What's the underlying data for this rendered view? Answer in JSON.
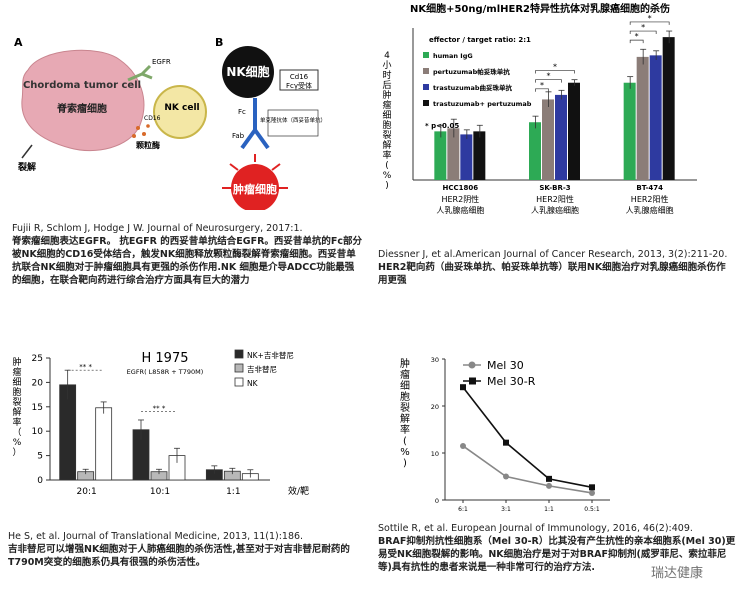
{
  "figure1": {
    "panel_a_letter": "A",
    "panel_b_letter": "B",
    "egfr_label": "EGFR",
    "tumor_label_en": "Chordoma tumor cell",
    "tumor_label_cn": "脊索瘤细胞",
    "nk_label": "NK cell",
    "cd16_label": "CD16",
    "granule_label": "颗粒酶",
    "lysis_label": "裂解",
    "nk_big": "NK细胞",
    "cd16_box": "Cd16",
    "fc_receptor": "Fcγ受体",
    "fc_label": "Fc",
    "fab_label": "Fab",
    "mab_label": "单克隆抗体（西妥昔单抗）",
    "tumor_big": "肿瘤细胞",
    "caption_ref": "Fujii R, Schlom J, Hodge J W.  Journal of Neurosurgery, 2017:1.",
    "caption_cn": "脊索瘤细胞表达EGFR。 抗EGFR 的西妥昔单抗结合EGFR。西妥昔单抗的Fc部分被NK细胞的CD16受体结合，触发NK细胞释放颗粒酶裂解脊索瘤细胞。西妥昔单抗联合NK细胞对于肿瘤细胞具有更强的杀伤作用.NK 细胞是介导ADCC功能最强的细胞，在联合靶向药进行综合治疗方面具有巨大的潜力"
  },
  "figure2": {
    "caption_ref": "Diessner J, et al.American Journal of Cancer Research, 2013, 3(2):211-20.",
    "caption_cn": "HER2靶向药（曲妥珠单抗、帕妥珠单抗等）联用NK细胞治疗对乳腺癌细胞杀伤作用更强",
    "sig_note": "* p<0.05",
    "group_sub": [
      "HER2阴性\n人乳腺癌细胞",
      "HER2阳性\n人乳腺癌细胞",
      "HER2阳性\n人乳腺癌细胞"
    ]
  },
  "figure3": {
    "caption_ref": "He S, et al. Journal of Translational Medicine, 2013, 11(1):186.",
    "caption_cn": "吉非替尼可以增强NK细胞对于人肺癌细胞的杀伤活性,甚至对于对吉非替尼耐药的T790M突变的细胞系仍具有很强的杀伤活性。",
    "plot_title": "H 1975",
    "plot_subtitle": "EGFR( L858R + T790M)",
    "sig_marks": "** *"
  },
  "figure4": {
    "caption_ref": "Sottile R,  et al.  European Journal of Immunology, 2016, 46(2):409.",
    "caption_cn": "BRAF抑制剂抗性细胞系（Mel 30-R）比其没有产生抗性的亲本细胞系(Mel 30)更易受NK细胞裂解的影响。NK细胞治疗是对于对BRAF抑制剂(威罗菲尼、索拉菲尼等)具有抗性的患者来说是一种非常可行的治疗方法."
  },
  "watermark": "瑞达健康",
  "chart_data": [
    {
      "type": "bar",
      "title": "NK细胞+50ng/mlHER2特异性抗体对乳腺癌细胞的杀伤",
      "ylabel": "4小时后肿瘤细胞裂解率(%)",
      "ylim": [
        0,
        50
      ],
      "annotation": "effector / target ratio: 2:1",
      "categories": [
        "HCC1806",
        "SK-BR-3",
        "BT-474"
      ],
      "series": [
        {
          "name": "human IgG",
          "values": [
            16,
            19,
            32
          ],
          "color": "#2daa55"
        },
        {
          "name": "pertuzumab帕妥珠单抗",
          "values": [
            17,
            26.5,
            40.5
          ],
          "color": "#8b7d78"
        },
        {
          "name": "trastuzumab曲妥珠单抗",
          "values": [
            15,
            28,
            41
          ],
          "color": "#2e3aa0"
        },
        {
          "name": "trastuzumab+ pertuzumab",
          "values": [
            16,
            32,
            47
          ],
          "color": "#111111"
        }
      ],
      "errors": [
        [
          2,
          2,
          2
        ],
        [
          3,
          2.5,
          2.5
        ],
        [
          1.5,
          1.5,
          1.5
        ],
        [
          2,
          1,
          2
        ]
      ]
    },
    {
      "type": "bar",
      "title": "H 1975",
      "ylabel": "肿瘤细胞裂解率（%）",
      "xlabel": "效/靶",
      "ylim": [
        0,
        25
      ],
      "yticks": [
        0,
        5,
        10,
        15,
        20,
        25
      ],
      "categories": [
        "20:1",
        "10:1",
        "1:1"
      ],
      "series": [
        {
          "name": "NK+吉非替尼",
          "values": [
            19.5,
            10.3,
            2.1
          ],
          "color": "#2a2a2a"
        },
        {
          "name": "吉非替尼",
          "values": [
            1.7,
            1.7,
            1.8
          ],
          "color": "#b8b8b8"
        },
        {
          "name": "NK",
          "values": [
            14.8,
            5.0,
            1.3
          ],
          "color": "#ffffff"
        }
      ],
      "errors": [
        [
          3,
          2,
          0.8
        ],
        [
          0.5,
          0.5,
          0.6
        ],
        [
          1.2,
          1.5,
          0.8
        ]
      ]
    },
    {
      "type": "line",
      "ylabel": "肿瘤细胞裂解率(%)",
      "ylim": [
        0,
        30
      ],
      "yticks": [
        0,
        10,
        20,
        30
      ],
      "categories": [
        "6:1",
        "3:1",
        "1:1",
        "0.5:1"
      ],
      "series": [
        {
          "name": "Mel 30",
          "values": [
            11.5,
            5,
            3,
            1.5
          ],
          "color": "#888888",
          "marker": "circle"
        },
        {
          "name": "Mel 30-R",
          "values": [
            24,
            12.2,
            4.5,
            2.7
          ],
          "color": "#111111",
          "marker": "square"
        }
      ]
    }
  ]
}
